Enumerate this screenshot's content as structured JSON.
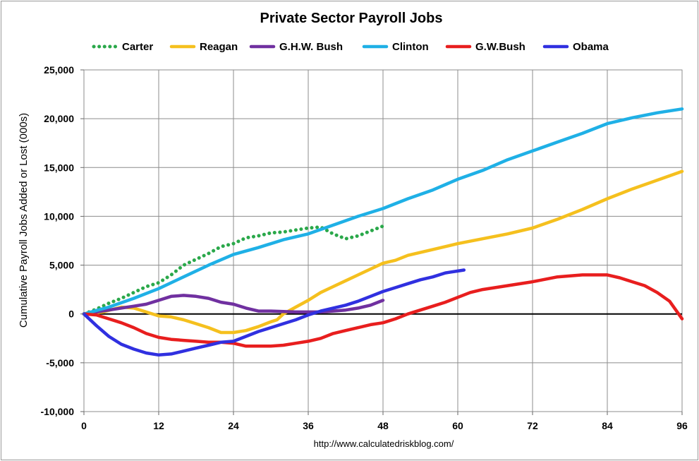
{
  "chart_data": {
    "type": "line",
    "title": "Private Sector Payroll Jobs",
    "xlabel": "",
    "ylabel": "Cumulative Payroll Jobs Added or  Lost (000s)",
    "source": "http://www.calculatedriskblog.com/",
    "xlim": [
      0,
      96
    ],
    "ylim": [
      -10000,
      25000
    ],
    "x_ticks": [
      0,
      12,
      24,
      36,
      48,
      60,
      72,
      84,
      96
    ],
    "x_tick_labels": [
      "0",
      "12",
      "24",
      "36",
      "48",
      "60",
      "72",
      "84",
      "96"
    ],
    "y_ticks": [
      25000,
      20000,
      15000,
      10000,
      5000,
      0,
      -5000,
      -10000
    ],
    "y_tick_labels": [
      "25,000",
      "20,000",
      "15,000",
      "10,000",
      "5,000",
      "0",
      "-5,000",
      "-10,000"
    ],
    "grid": true,
    "legend_position": "top",
    "series": [
      {
        "name": "Carter",
        "color": "#2aa84a",
        "dashed": true,
        "points": [
          [
            0,
            0
          ],
          [
            2,
            500
          ],
          [
            4,
            1100
          ],
          [
            6,
            1600
          ],
          [
            8,
            2200
          ],
          [
            10,
            2800
          ],
          [
            12,
            3200
          ],
          [
            14,
            4000
          ],
          [
            16,
            5000
          ],
          [
            18,
            5600
          ],
          [
            20,
            6200
          ],
          [
            22,
            6900
          ],
          [
            24,
            7200
          ],
          [
            26,
            7800
          ],
          [
            28,
            8000
          ],
          [
            30,
            8300
          ],
          [
            32,
            8400
          ],
          [
            34,
            8600
          ],
          [
            36,
            8800
          ],
          [
            38,
            8900
          ],
          [
            40,
            8200
          ],
          [
            42,
            7700
          ],
          [
            44,
            8000
          ],
          [
            46,
            8500
          ],
          [
            48,
            9000
          ]
        ]
      },
      {
        "name": "Reagan",
        "color": "#f5c01e",
        "points": [
          [
            0,
            0
          ],
          [
            3,
            200
          ],
          [
            6,
            700
          ],
          [
            8,
            600
          ],
          [
            10,
            200
          ],
          [
            12,
            -200
          ],
          [
            14,
            -300
          ],
          [
            16,
            -600
          ],
          [
            18,
            -1000
          ],
          [
            20,
            -1400
          ],
          [
            22,
            -1900
          ],
          [
            24,
            -1900
          ],
          [
            26,
            -1700
          ],
          [
            28,
            -1300
          ],
          [
            30,
            -800
          ],
          [
            31,
            -600
          ],
          [
            32,
            0
          ],
          [
            34,
            700
          ],
          [
            36,
            1400
          ],
          [
            38,
            2200
          ],
          [
            40,
            2800
          ],
          [
            42,
            3400
          ],
          [
            44,
            4000
          ],
          [
            46,
            4600
          ],
          [
            48,
            5200
          ],
          [
            50,
            5500
          ],
          [
            52,
            6000
          ],
          [
            56,
            6600
          ],
          [
            60,
            7200
          ],
          [
            64,
            7700
          ],
          [
            68,
            8200
          ],
          [
            72,
            8800
          ],
          [
            76,
            9700
          ],
          [
            80,
            10700
          ],
          [
            84,
            11800
          ],
          [
            88,
            12800
          ],
          [
            92,
            13700
          ],
          [
            96,
            14600
          ]
        ]
      },
      {
        "name": "G.H.W. Bush",
        "color": "#7030a0",
        "points": [
          [
            0,
            0
          ],
          [
            2,
            200
          ],
          [
            4,
            400
          ],
          [
            6,
            600
          ],
          [
            8,
            800
          ],
          [
            10,
            1000
          ],
          [
            12,
            1400
          ],
          [
            14,
            1800
          ],
          [
            16,
            1900
          ],
          [
            18,
            1800
          ],
          [
            20,
            1600
          ],
          [
            22,
            1200
          ],
          [
            24,
            1000
          ],
          [
            26,
            600
          ],
          [
            28,
            300
          ],
          [
            30,
            300
          ],
          [
            32,
            250
          ],
          [
            34,
            200
          ],
          [
            36,
            200
          ],
          [
            38,
            200
          ],
          [
            40,
            300
          ],
          [
            42,
            400
          ],
          [
            44,
            600
          ],
          [
            46,
            900
          ],
          [
            48,
            1400
          ]
        ]
      },
      {
        "name": "Clinton",
        "color": "#1fb0e6",
        "points": [
          [
            0,
            0
          ],
          [
            4,
            700
          ],
          [
            8,
            1600
          ],
          [
            12,
            2600
          ],
          [
            16,
            3800
          ],
          [
            20,
            5000
          ],
          [
            24,
            6100
          ],
          [
            28,
            6800
          ],
          [
            32,
            7600
          ],
          [
            36,
            8200
          ],
          [
            40,
            9100
          ],
          [
            44,
            10000
          ],
          [
            48,
            10800
          ],
          [
            52,
            11800
          ],
          [
            56,
            12700
          ],
          [
            60,
            13800
          ],
          [
            64,
            14700
          ],
          [
            68,
            15800
          ],
          [
            72,
            16700
          ],
          [
            76,
            17600
          ],
          [
            80,
            18500
          ],
          [
            84,
            19500
          ],
          [
            88,
            20100
          ],
          [
            92,
            20600
          ],
          [
            96,
            21000
          ]
        ]
      },
      {
        "name": "G.W.Bush",
        "color": "#e81e1e",
        "points": [
          [
            0,
            0
          ],
          [
            2,
            -100
          ],
          [
            4,
            -500
          ],
          [
            6,
            -900
          ],
          [
            8,
            -1400
          ],
          [
            10,
            -2000
          ],
          [
            12,
            -2400
          ],
          [
            14,
            -2600
          ],
          [
            16,
            -2700
          ],
          [
            18,
            -2800
          ],
          [
            20,
            -2900
          ],
          [
            22,
            -2900
          ],
          [
            24,
            -3000
          ],
          [
            26,
            -3300
          ],
          [
            28,
            -3300
          ],
          [
            30,
            -3300
          ],
          [
            32,
            -3200
          ],
          [
            34,
            -3000
          ],
          [
            36,
            -2800
          ],
          [
            38,
            -2500
          ],
          [
            40,
            -2000
          ],
          [
            42,
            -1700
          ],
          [
            44,
            -1400
          ],
          [
            46,
            -1100
          ],
          [
            48,
            -900
          ],
          [
            50,
            -500
          ],
          [
            52,
            0
          ],
          [
            54,
            400
          ],
          [
            56,
            800
          ],
          [
            58,
            1200
          ],
          [
            60,
            1700
          ],
          [
            62,
            2200
          ],
          [
            64,
            2500
          ],
          [
            68,
            2900
          ],
          [
            72,
            3300
          ],
          [
            76,
            3800
          ],
          [
            80,
            4000
          ],
          [
            84,
            4000
          ],
          [
            86,
            3700
          ],
          [
            88,
            3300
          ],
          [
            90,
            2900
          ],
          [
            92,
            2200
          ],
          [
            94,
            1300
          ],
          [
            96,
            -500
          ]
        ]
      },
      {
        "name": "Obama",
        "color": "#3030e0",
        "points": [
          [
            0,
            0
          ],
          [
            2,
            -1200
          ],
          [
            4,
            -2300
          ],
          [
            6,
            -3100
          ],
          [
            8,
            -3600
          ],
          [
            10,
            -4000
          ],
          [
            12,
            -4200
          ],
          [
            14,
            -4100
          ],
          [
            16,
            -3800
          ],
          [
            18,
            -3500
          ],
          [
            20,
            -3200
          ],
          [
            22,
            -2900
          ],
          [
            24,
            -2800
          ],
          [
            26,
            -2300
          ],
          [
            28,
            -1800
          ],
          [
            30,
            -1400
          ],
          [
            32,
            -1000
          ],
          [
            34,
            -600
          ],
          [
            36,
            -100
          ],
          [
            38,
            300
          ],
          [
            40,
            600
          ],
          [
            42,
            900
          ],
          [
            44,
            1300
          ],
          [
            46,
            1800
          ],
          [
            48,
            2300
          ],
          [
            50,
            2700
          ],
          [
            52,
            3100
          ],
          [
            54,
            3500
          ],
          [
            56,
            3800
          ],
          [
            58,
            4200
          ],
          [
            60,
            4400
          ],
          [
            61,
            4500
          ]
        ]
      }
    ]
  }
}
